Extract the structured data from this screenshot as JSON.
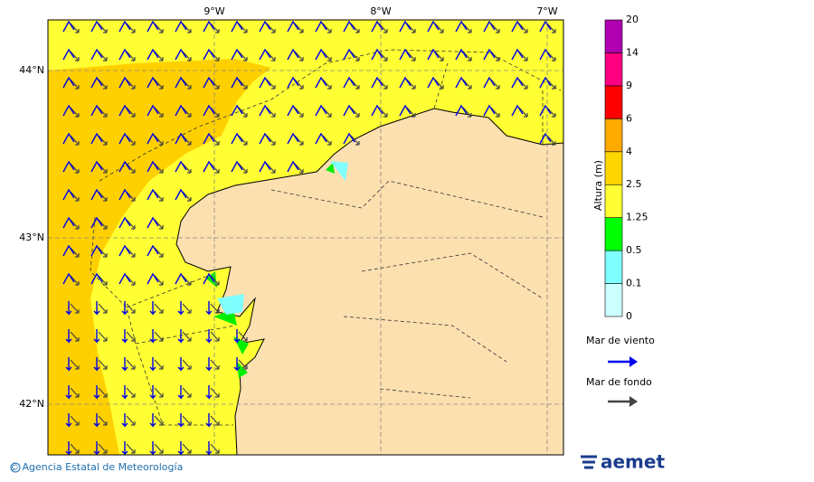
{
  "map": {
    "lon_labels": [
      "9°W",
      "8°W",
      "7°W"
    ],
    "lat_labels": [
      "44°N",
      "43°N",
      "42°N"
    ]
  },
  "colorbar": {
    "label": "Altura (m)",
    "levels": [
      0,
      0.1,
      0.5,
      1.25,
      2.5,
      4,
      6,
      9,
      14,
      20
    ],
    "colors": [
      "#ccffff",
      "#80ffff",
      "#00ff00",
      "#ffff33",
      "#ffd700",
      "#ffaa00",
      "#ff0000",
      "#ff0080",
      "#b000b0"
    ]
  },
  "legend": {
    "items": [
      {
        "label": "Mar de viento",
        "color": "#0000ee"
      },
      {
        "label": "Mar de fondo",
        "color": "#444444"
      }
    ]
  },
  "footer": {
    "copyright": "© Agencia Estatal de Meteorología",
    "logo": "aemet"
  }
}
